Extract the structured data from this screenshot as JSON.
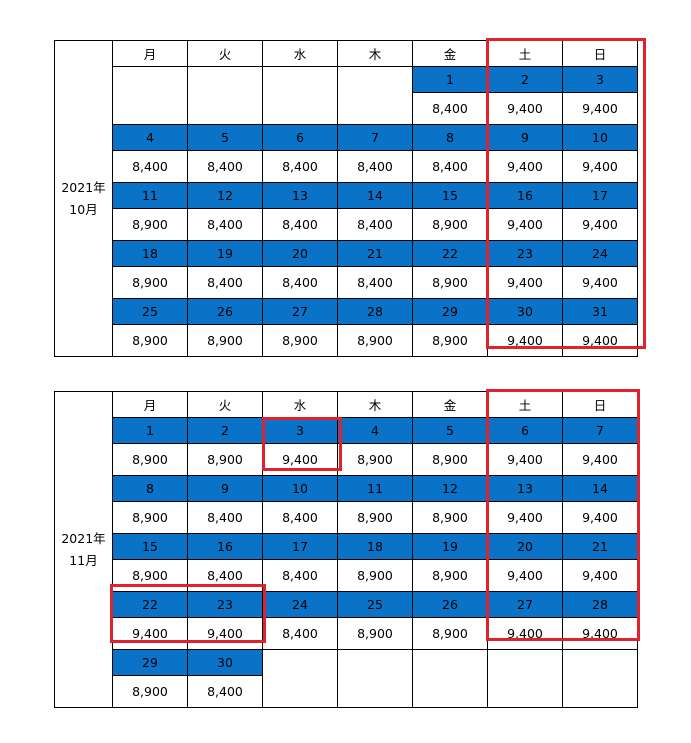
{
  "weekdays": [
    "月",
    "火",
    "水",
    "木",
    "金",
    "土",
    "日"
  ],
  "october": {
    "label_year": "2021年",
    "label_month": "10月",
    "weeks": [
      {
        "days": [
          "",
          "",
          "",
          "",
          "1",
          "2",
          "3"
        ],
        "prices": [
          "",
          "",
          "",
          "",
          "8,400",
          "9,400",
          "9,400"
        ]
      },
      {
        "days": [
          "4",
          "5",
          "6",
          "7",
          "8",
          "9",
          "10"
        ],
        "prices": [
          "8,400",
          "8,400",
          "8,400",
          "8,400",
          "8,400",
          "9,400",
          "9,400"
        ]
      },
      {
        "days": [
          "11",
          "12",
          "13",
          "14",
          "15",
          "16",
          "17"
        ],
        "prices": [
          "8,900",
          "8,400",
          "8,400",
          "8,400",
          "8,900",
          "9,400",
          "9,400"
        ]
      },
      {
        "days": [
          "18",
          "19",
          "20",
          "21",
          "22",
          "23",
          "24"
        ],
        "prices": [
          "8,900",
          "8,400",
          "8,400",
          "8,400",
          "8,900",
          "9,400",
          "9,400"
        ]
      },
      {
        "days": [
          "25",
          "26",
          "27",
          "28",
          "29",
          "30",
          "31"
        ],
        "prices": [
          "8,900",
          "8,900",
          "8,900",
          "8,900",
          "8,900",
          "9,400",
          "9,400"
        ]
      }
    ]
  },
  "november": {
    "label_year": "2021年",
    "label_month": "11月",
    "weeks": [
      {
        "days": [
          "1",
          "2",
          "3",
          "4",
          "5",
          "6",
          "7"
        ],
        "prices": [
          "8,900",
          "8,900",
          "9,400",
          "8,900",
          "8,900",
          "9,400",
          "9,400"
        ]
      },
      {
        "days": [
          "8",
          "9",
          "10",
          "11",
          "12",
          "13",
          "14"
        ],
        "prices": [
          "8,900",
          "8,400",
          "8,400",
          "8,900",
          "8,900",
          "9,400",
          "9,400"
        ]
      },
      {
        "days": [
          "15",
          "16",
          "17",
          "18",
          "19",
          "20",
          "21"
        ],
        "prices": [
          "8,900",
          "8,400",
          "8,400",
          "8,900",
          "8,900",
          "9,400",
          "9,400"
        ]
      },
      {
        "days": [
          "22",
          "23",
          "24",
          "25",
          "26",
          "27",
          "28"
        ],
        "prices": [
          "9,400",
          "9,400",
          "8,400",
          "8,900",
          "8,900",
          "9,400",
          "9,400"
        ]
      },
      {
        "days": [
          "29",
          "30",
          "",
          "",
          "",
          "",
          ""
        ],
        "prices": [
          "8,900",
          "8,400",
          "",
          "",
          "",
          "",
          ""
        ]
      }
    ]
  },
  "colors": {
    "day_header_bg": "#0a73c8",
    "highlight_border": "#e0222d"
  }
}
